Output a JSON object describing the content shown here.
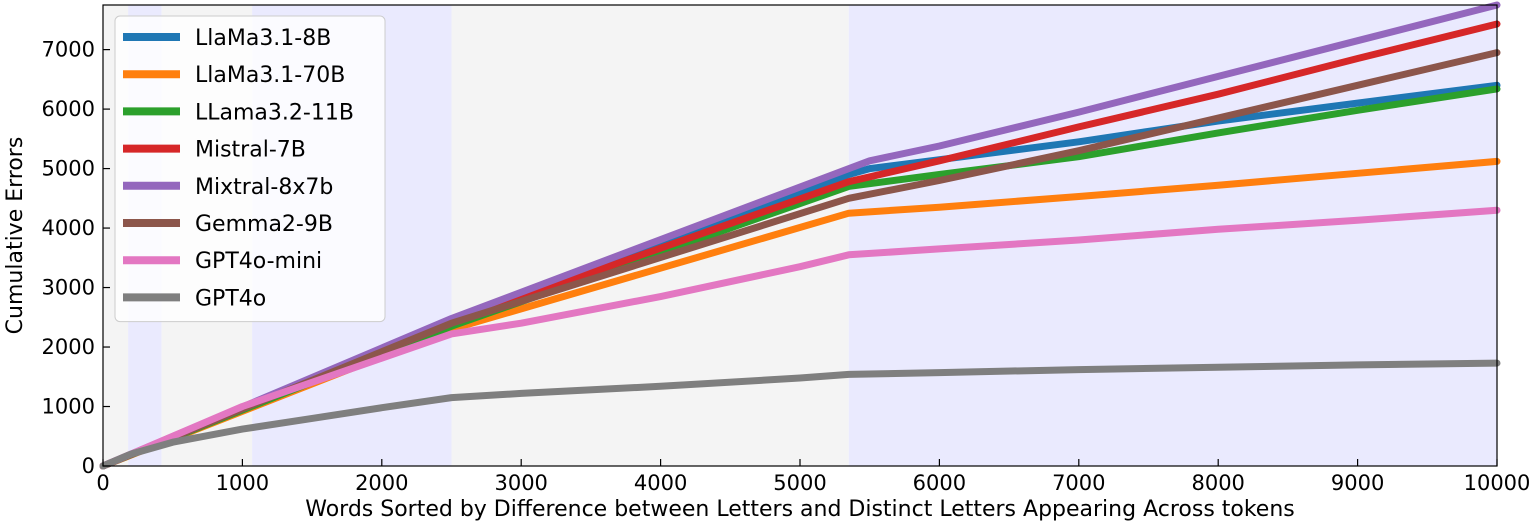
{
  "chart_data": {
    "type": "line",
    "title": "",
    "xlabel": "Words Sorted by Difference between Letters and Distinct Letters Appearing Across tokens",
    "ylabel": "Cumulative Errors",
    "xlim": [
      0,
      10000
    ],
    "ylim": [
      0,
      7750
    ],
    "xticks": [
      0,
      1000,
      2000,
      3000,
      4000,
      5000,
      6000,
      7000,
      8000,
      9000,
      10000
    ],
    "yticks": [
      0,
      1000,
      2000,
      3000,
      4000,
      5000,
      6000,
      7000
    ],
    "grid": false,
    "legend_position": "top-left",
    "background_bands": [
      {
        "x0": 0,
        "x1": 180,
        "color": "#f4f4f4"
      },
      {
        "x0": 180,
        "x1": 420,
        "color": "#eaeafe"
      },
      {
        "x0": 420,
        "x1": 1070,
        "color": "#f4f4f4"
      },
      {
        "x0": 1070,
        "x1": 2500,
        "color": "#eaeafe"
      },
      {
        "x0": 2500,
        "x1": 5350,
        "color": "#f4f4f4"
      },
      {
        "x0": 5350,
        "x1": 10000,
        "color": "#eaeafe"
      }
    ],
    "series": [
      {
        "name": "LlaMa3.1-8B",
        "color": "#1f77b4",
        "x": [
          0,
          2500,
          5350,
          5500,
          6000,
          7000,
          8000,
          9000,
          10000
        ],
        "y": [
          0,
          2400,
          4900,
          5000,
          5150,
          5450,
          5800,
          6100,
          6400
        ]
      },
      {
        "name": "LlaMa3.1-70B",
        "color": "#ff7f0e",
        "x": [
          0,
          2500,
          5350,
          6000,
          7000,
          8000,
          9000,
          10000
        ],
        "y": [
          0,
          2300,
          4250,
          4350,
          4530,
          4720,
          4920,
          5120
        ]
      },
      {
        "name": "LLama3.2-11B",
        "color": "#2ca02c",
        "x": [
          0,
          2500,
          5350,
          6000,
          7000,
          8000,
          9000,
          10000
        ],
        "y": [
          0,
          2350,
          4700,
          4900,
          5200,
          5600,
          5980,
          6340
        ]
      },
      {
        "name": "Mistral-7B",
        "color": "#d62728",
        "x": [
          0,
          2500,
          5350,
          6000,
          7000,
          8000,
          9000,
          10000
        ],
        "y": [
          0,
          2420,
          4780,
          5130,
          5700,
          6250,
          6850,
          7430
        ]
      },
      {
        "name": "Mixtral-8x7b",
        "color": "#9467bd",
        "x": [
          0,
          2500,
          5350,
          5500,
          6000,
          7000,
          8000,
          9000,
          10000
        ],
        "y": [
          0,
          2480,
          5000,
          5130,
          5380,
          5950,
          6550,
          7150,
          7750
        ]
      },
      {
        "name": "Gemma2-9B",
        "color": "#8c564b",
        "x": [
          0,
          2500,
          5350,
          6000,
          7000,
          8000,
          9000,
          10000
        ],
        "y": [
          0,
          2400,
          4500,
          4800,
          5300,
          5850,
          6400,
          6950
        ]
      },
      {
        "name": "GPT4o-mini",
        "color": "#e377c2",
        "x": [
          0,
          1000,
          2500,
          3000,
          4000,
          5000,
          5350,
          6000,
          7000,
          8000,
          9000,
          10000
        ],
        "y": [
          0,
          1000,
          2220,
          2400,
          2850,
          3350,
          3550,
          3650,
          3800,
          3980,
          4130,
          4300
        ]
      },
      {
        "name": "GPT4o",
        "color": "#7f7f7f",
        "x": [
          0,
          200,
          500,
          1000,
          1500,
          2000,
          2500,
          3000,
          4000,
          5000,
          5350,
          6000,
          7000,
          8000,
          9000,
          10000
        ],
        "y": [
          0,
          200,
          400,
          620,
          800,
          980,
          1150,
          1220,
          1340,
          1480,
          1540,
          1570,
          1620,
          1660,
          1700,
          1730
        ]
      }
    ]
  }
}
